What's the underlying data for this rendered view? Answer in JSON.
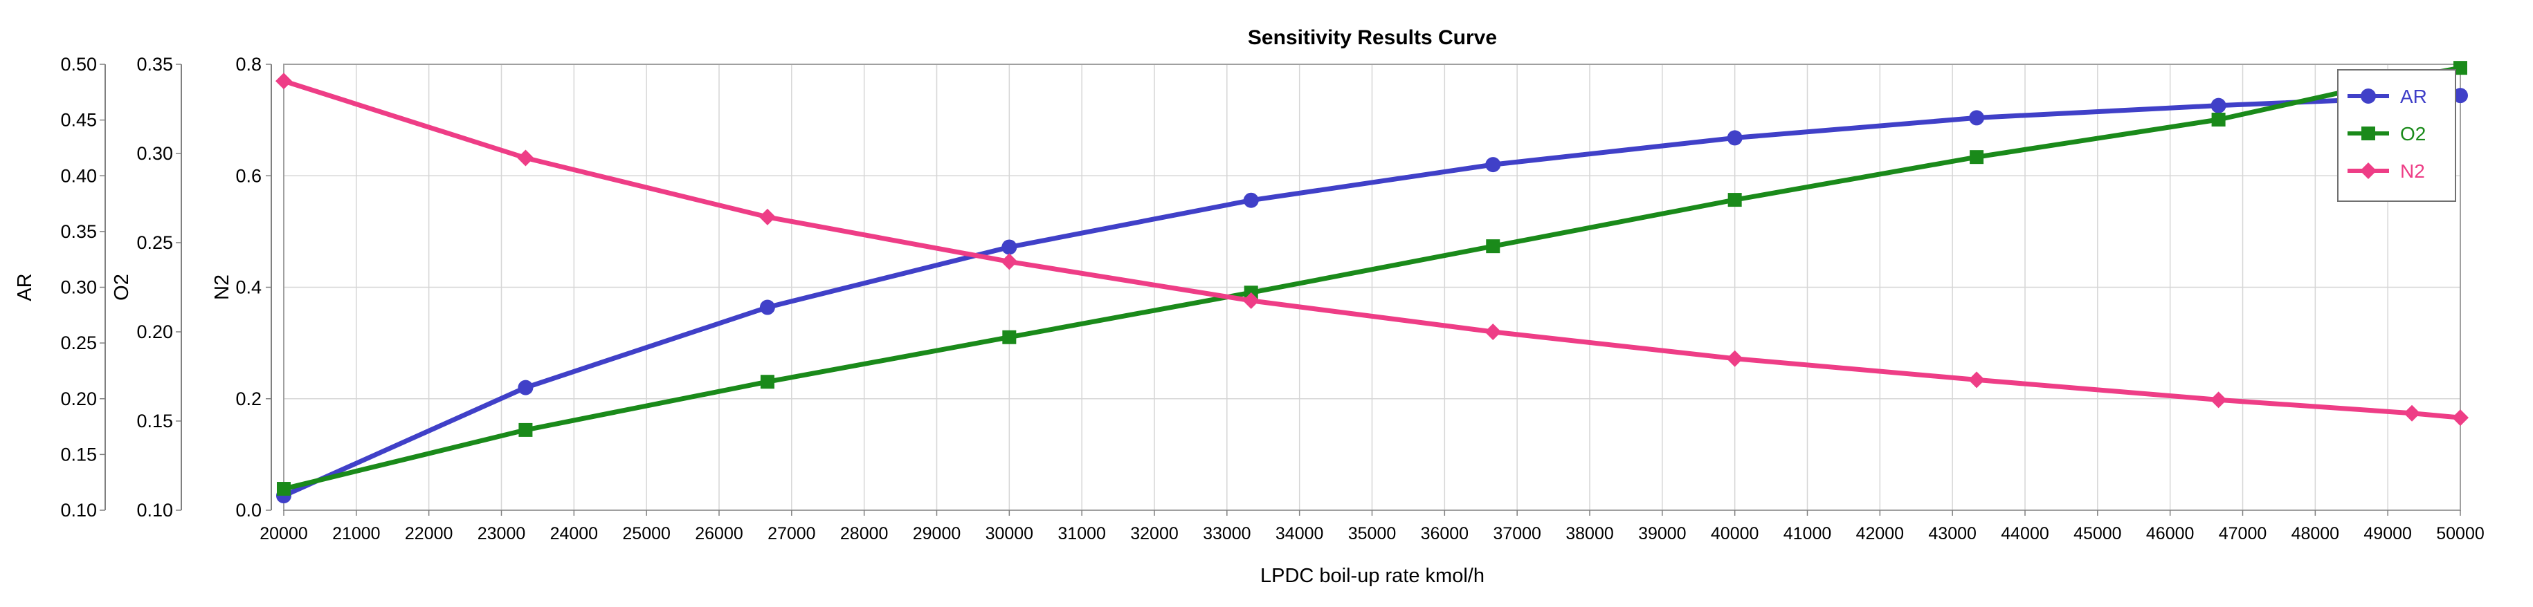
{
  "chart_data": {
    "type": "line",
    "title": "Sensitivity Results Curve",
    "xlabel": "LPDC boil-up rate kmol/h",
    "xlim": [
      20000,
      50000
    ],
    "x_ticks": [
      "20000",
      "21000",
      "22000",
      "23000",
      "24000",
      "25000",
      "26000",
      "27000",
      "28000",
      "29000",
      "30000",
      "31000",
      "32000",
      "33000",
      "34000",
      "35000",
      "36000",
      "37000",
      "38000",
      "39000",
      "40000",
      "41000",
      "42000",
      "43000",
      "44000",
      "45000",
      "46000",
      "47000",
      "48000",
      "49000",
      "50000"
    ],
    "grid": true,
    "legend_position": "top-right",
    "axes": [
      {
        "id": "AR",
        "label": "AR",
        "ylim": [
          0.1,
          0.5
        ],
        "ticks": [
          "0.10",
          "0.15",
          "0.20",
          "0.25",
          "0.30",
          "0.35",
          "0.40",
          "0.45",
          "0.50"
        ]
      },
      {
        "id": "O2",
        "label": "O2",
        "ylim": [
          0.1,
          0.35
        ],
        "ticks": [
          "0.10",
          "0.15",
          "0.20",
          "0.25",
          "0.30",
          "0.35"
        ]
      },
      {
        "id": "N2",
        "label": "N2",
        "ylim": [
          0.0,
          0.8
        ],
        "ticks": [
          "0.0",
          "0.2",
          "0.4",
          "0.6",
          "0.8"
        ]
      }
    ],
    "series": [
      {
        "name": "AR",
        "axis": "AR",
        "color": "#4040c8",
        "marker": "circle",
        "x": [
          20000,
          23333,
          26667,
          30000,
          33333,
          36667,
          40000,
          43333,
          46667,
          50000
        ],
        "values": [
          0.113,
          0.21,
          0.282,
          0.336,
          0.378,
          0.41,
          0.434,
          0.452,
          0.463,
          0.472
        ]
      },
      {
        "name": "O2",
        "axis": "O2",
        "color": "#1a8a1a",
        "marker": "square",
        "x": [
          20000,
          23333,
          26667,
          30000,
          33333,
          36667,
          40000,
          43333,
          46667,
          49333,
          50000
        ],
        "values": [
          0.112,
          0.145,
          0.172,
          0.197,
          0.222,
          0.248,
          0.274,
          0.298,
          0.319,
          0.343,
          0.348
        ]
      },
      {
        "name": "N2",
        "axis": "N2",
        "color": "#ee3d86",
        "marker": "diamond",
        "x": [
          20000,
          23333,
          26667,
          30000,
          33333,
          36667,
          40000,
          43333,
          46667,
          49333,
          50000
        ],
        "values": [
          0.77,
          0.632,
          0.526,
          0.446,
          0.376,
          0.32,
          0.272,
          0.234,
          0.198,
          0.174,
          0.166
        ]
      }
    ]
  }
}
